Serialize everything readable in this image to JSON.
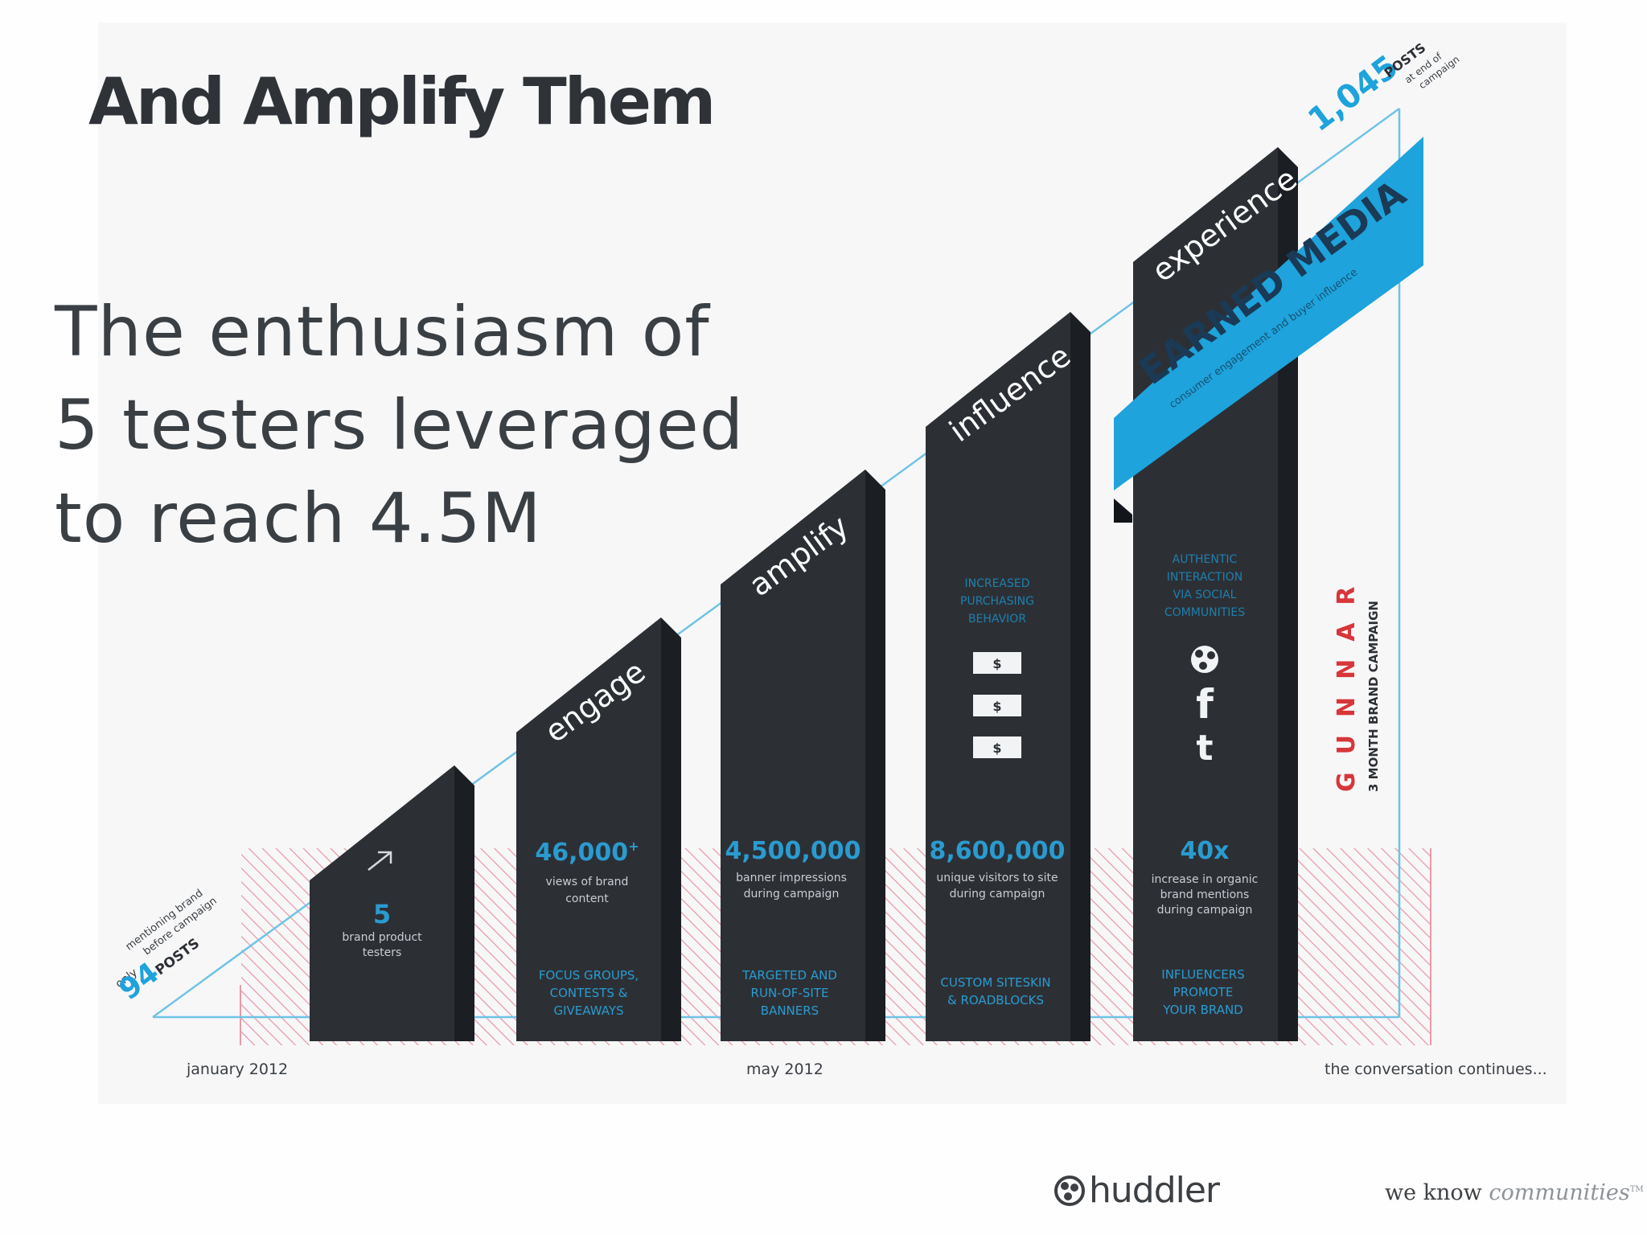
{
  "slide": {
    "title": "And Amplify Them",
    "subtitle_lines": [
      "The enthusiasm of",
      "5 testers leveraged",
      "to reach 4.5M"
    ]
  },
  "colors": {
    "bar": "#2c3035",
    "bar_dark": "#1b1e22",
    "accent_blue": "#1ea3dc",
    "bar_text_blue": "#2a9bd0",
    "hatch_red": "#e79aa8",
    "brand_red": "#d7363a",
    "line_blue": "#6fc3e6"
  },
  "diagram": {
    "start": {
      "only": "only",
      "count": "94",
      "unit": "POSTS",
      "note_1": "mentioning brand",
      "note_2": "before campaign"
    },
    "end": {
      "count": "1,045",
      "unit": "POSTS",
      "note_1": "at end of",
      "note_2": "campaign"
    },
    "timeline": {
      "jan": "january 2012",
      "may": "may 2012",
      "continues": "the conversation continues..."
    },
    "earned_media": {
      "title": "EARNED MEDIA",
      "subtitle": "consumer engagement and buyer influence"
    },
    "brand": {
      "name": "GUNNAR",
      "campaign": "3 MONTH BRAND CAMPAIGN"
    },
    "bars": [
      {
        "stage": "",
        "icon": "arrow-icon",
        "metric": "5",
        "desc_1": "brand product",
        "desc_2": "testers",
        "desc_3": "",
        "tactic_1": "",
        "tactic_2": "",
        "tactic_3": ""
      },
      {
        "stage": "engage",
        "metric": "46,000",
        "metric_sup": "+",
        "desc_1": "views of brand",
        "desc_2": "content",
        "desc_3": "",
        "tactic_1": "FOCUS GROUPS,",
        "tactic_2": "CONTESTS &",
        "tactic_3": "GIVEAWAYS"
      },
      {
        "stage": "amplify",
        "metric": "4,500,000",
        "desc_1": "banner impressions",
        "desc_2": "during campaign",
        "desc_3": "",
        "tactic_1": "TARGETED AND",
        "tactic_2": "RUN-OF-SITE",
        "tactic_3": "BANNERS"
      },
      {
        "stage": "influence",
        "metric": "8,600,000",
        "desc_1": "unique visitors to site",
        "desc_2": "during campaign",
        "desc_3": "",
        "tactic_1": "CUSTOM SITESKIN",
        "tactic_2": "& ROADBLOCKS",
        "tactic_3": "",
        "top_note_1": "INCREASED",
        "top_note_2": "PURCHASING",
        "top_note_3": "BEHAVIOR",
        "dollar": "$"
      },
      {
        "stage": "experience",
        "metric": "40x",
        "desc_1": "increase in organic",
        "desc_2": "brand mentions",
        "desc_3": "during campaign",
        "tactic_1": "INFLUENCERS",
        "tactic_2": "PROMOTE",
        "tactic_3": "YOUR BRAND",
        "top_note_1": "AUTHENTIC",
        "top_note_2": "INTERACTION",
        "top_note_3": "VIA SOCIAL",
        "top_note_4": "COMMUNITIES",
        "social_f": "f",
        "social_t": "t"
      }
    ]
  },
  "footer": {
    "logo": "huddler",
    "tagline_a": "we know ",
    "tagline_b": "communities",
    "tm": "TM"
  }
}
